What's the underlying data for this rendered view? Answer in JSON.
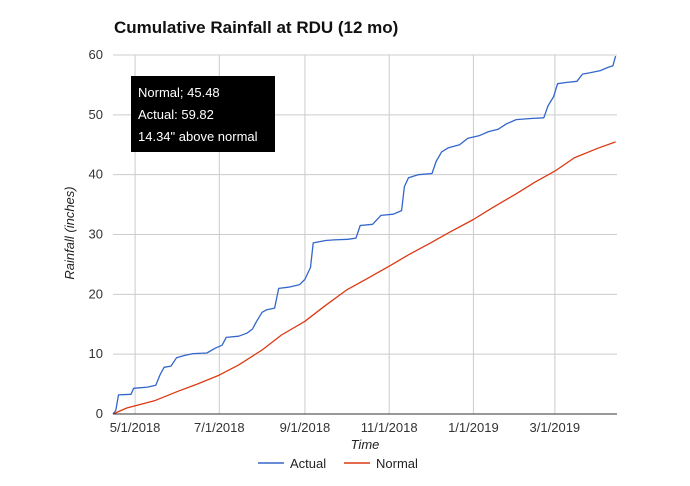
{
  "chart_data": {
    "type": "line",
    "title": "Cumulative Rainfall at RDU (12 mo)",
    "xlabel": "Time",
    "ylabel": "Rainfall (inches)",
    "ylim": [
      0,
      60
    ],
    "y_ticks": [
      0,
      10,
      20,
      30,
      40,
      50,
      60
    ],
    "y_tick_labels": [
      "0",
      "10",
      "20",
      "30",
      "40",
      "50",
      "60"
    ],
    "x_range": [
      "2018-04-15",
      "2019-04-15"
    ],
    "x_ticks": [
      "2018-05-01",
      "2018-07-01",
      "2018-09-01",
      "2018-11-01",
      "2019-01-01",
      "2019-03-01"
    ],
    "x_tick_labels": [
      "5/1/2018",
      "7/1/2018",
      "9/1/2018",
      "11/1/2018",
      "1/1/2019",
      "3/1/2019"
    ],
    "grid": true,
    "legend_position": "bottom",
    "series": [
      {
        "name": "Actual",
        "color": "#3366cc",
        "points": [
          [
            "2018-04-15",
            0.0
          ],
          [
            "2018-04-17",
            0.6
          ],
          [
            "2018-04-19",
            3.2
          ],
          [
            "2018-04-28",
            3.3
          ],
          [
            "2018-04-30",
            4.3
          ],
          [
            "2018-05-10",
            4.5
          ],
          [
            "2018-05-16",
            4.8
          ],
          [
            "2018-05-19",
            6.5
          ],
          [
            "2018-05-22",
            7.8
          ],
          [
            "2018-05-27",
            8.0
          ],
          [
            "2018-05-31",
            9.4
          ],
          [
            "2018-06-06",
            9.8
          ],
          [
            "2018-06-12",
            10.1
          ],
          [
            "2018-06-22",
            10.2
          ],
          [
            "2018-06-28",
            11.0
          ],
          [
            "2018-07-03",
            11.5
          ],
          [
            "2018-07-06",
            12.8
          ],
          [
            "2018-07-15",
            13.0
          ],
          [
            "2018-07-21",
            13.5
          ],
          [
            "2018-07-25",
            14.2
          ],
          [
            "2018-07-28",
            15.5
          ],
          [
            "2018-08-01",
            17.0
          ],
          [
            "2018-08-04",
            17.4
          ],
          [
            "2018-08-10",
            17.7
          ],
          [
            "2018-08-13",
            21.0
          ],
          [
            "2018-08-20",
            21.2
          ],
          [
            "2018-08-28",
            21.6
          ],
          [
            "2018-09-01",
            22.5
          ],
          [
            "2018-09-05",
            24.5
          ],
          [
            "2018-09-07",
            28.6
          ],
          [
            "2018-09-16",
            29.0
          ],
          [
            "2018-09-22",
            29.1
          ],
          [
            "2018-10-02",
            29.2
          ],
          [
            "2018-10-08",
            29.4
          ],
          [
            "2018-10-11",
            31.5
          ],
          [
            "2018-10-20",
            31.7
          ],
          [
            "2018-10-26",
            33.2
          ],
          [
            "2018-11-04",
            33.4
          ],
          [
            "2018-11-10",
            34.0
          ],
          [
            "2018-11-12",
            38.0
          ],
          [
            "2018-11-15",
            39.5
          ],
          [
            "2018-11-22",
            40.0
          ],
          [
            "2018-12-02",
            40.2
          ],
          [
            "2018-12-05",
            42.2
          ],
          [
            "2018-12-09",
            43.8
          ],
          [
            "2018-12-14",
            44.5
          ],
          [
            "2018-12-22",
            45.0
          ],
          [
            "2018-12-28",
            46.1
          ],
          [
            "2019-01-05",
            46.5
          ],
          [
            "2019-01-12",
            47.2
          ],
          [
            "2019-01-19",
            47.6
          ],
          [
            "2019-01-25",
            48.5
          ],
          [
            "2019-02-01",
            49.2
          ],
          [
            "2019-02-13",
            49.4
          ],
          [
            "2019-02-21",
            49.5
          ],
          [
            "2019-02-24",
            51.5
          ],
          [
            "2019-02-28",
            53.0
          ],
          [
            "2019-03-03",
            55.2
          ],
          [
            "2019-03-09",
            55.4
          ],
          [
            "2019-03-17",
            55.6
          ],
          [
            "2019-03-21",
            56.8
          ],
          [
            "2019-03-26",
            57.0
          ],
          [
            "2019-04-03",
            57.4
          ],
          [
            "2019-04-08",
            57.9
          ],
          [
            "2019-04-12",
            58.2
          ],
          [
            "2019-04-14",
            59.82
          ]
        ]
      },
      {
        "name": "Normal",
        "color": "#dc3912",
        "points": [
          [
            "2018-04-15",
            0.0
          ],
          [
            "2018-04-25",
            1.0
          ],
          [
            "2018-05-15",
            2.2
          ],
          [
            "2018-06-01",
            3.8
          ],
          [
            "2018-06-15",
            5.0
          ],
          [
            "2018-07-01",
            6.5
          ],
          [
            "2018-07-15",
            8.2
          ],
          [
            "2018-08-01",
            10.7
          ],
          [
            "2018-08-15",
            13.2
          ],
          [
            "2018-09-01",
            15.5
          ],
          [
            "2018-09-15",
            18.0
          ],
          [
            "2018-10-01",
            20.7
          ],
          [
            "2018-10-15",
            22.5
          ],
          [
            "2018-11-01",
            24.7
          ],
          [
            "2018-11-15",
            26.6
          ],
          [
            "2018-12-01",
            28.6
          ],
          [
            "2018-12-15",
            30.4
          ],
          [
            "2019-01-01",
            32.5
          ],
          [
            "2019-01-15",
            34.5
          ],
          [
            "2019-02-01",
            36.8
          ],
          [
            "2019-02-15",
            38.8
          ],
          [
            "2019-03-01",
            40.6
          ],
          [
            "2019-03-15",
            42.8
          ],
          [
            "2019-04-01",
            44.4
          ],
          [
            "2019-04-14",
            45.48
          ]
        ]
      }
    ],
    "annotation": {
      "lines": [
        "Normal; 45.48",
        "Actual: 59.82",
        "14.34\" above normal"
      ],
      "background": "#000000",
      "text_color": "#ffffff"
    }
  }
}
